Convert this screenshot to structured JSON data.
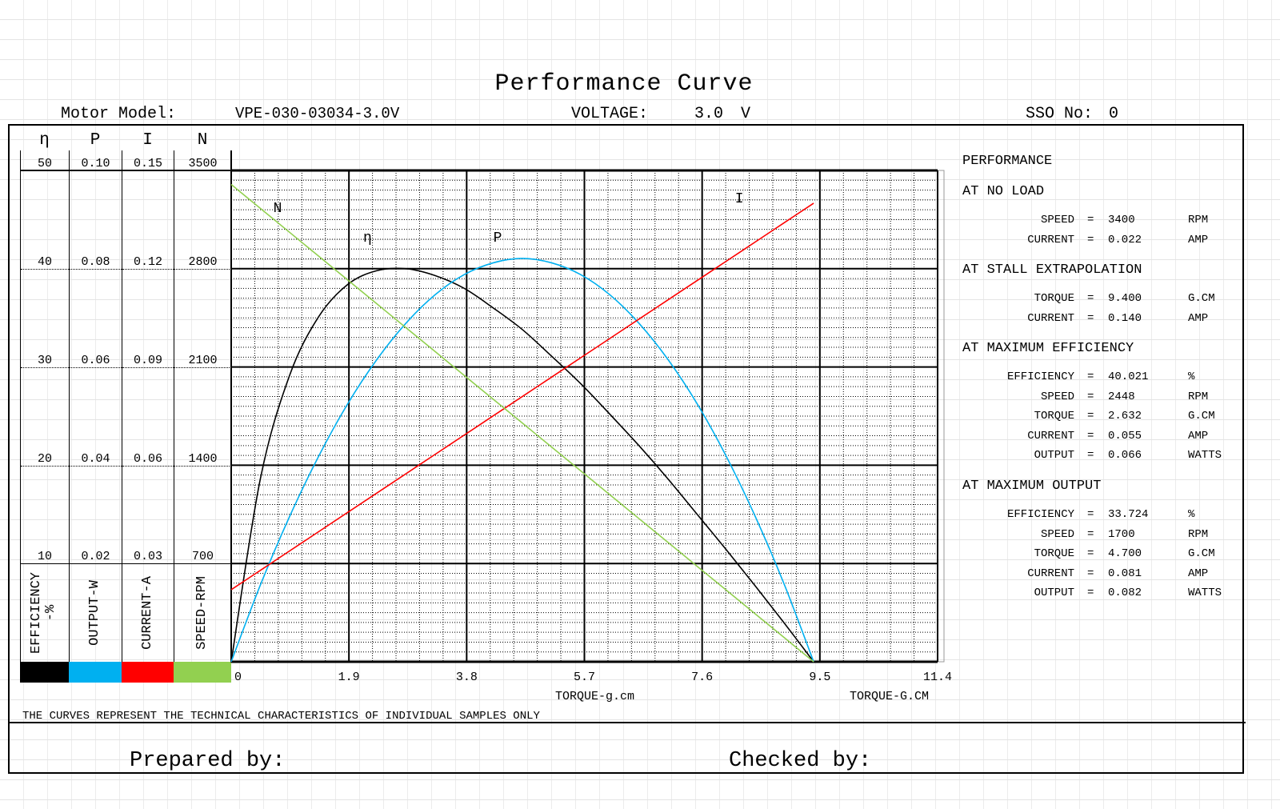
{
  "title": "Performance Curve",
  "header": {
    "motor_model_label": "Motor Model:",
    "motor_model": "VPE-030-03034-3.0V",
    "voltage_label": "VOLTAGE:",
    "voltage": "3.0",
    "voltage_unit": "V",
    "sso_label": "SSO No:",
    "sso": "0"
  },
  "axes": {
    "headers": [
      "η",
      "P",
      "I",
      "N"
    ],
    "ticks": [
      [
        "50",
        "0.10",
        "0.15",
        "3500"
      ],
      [
        "40",
        "0.08",
        "0.12",
        "2800"
      ],
      [
        "30",
        "0.06",
        "0.09",
        "2100"
      ],
      [
        "20",
        "0.04",
        "0.06",
        "1400"
      ],
      [
        "10",
        "0.02",
        "0.03",
        "700"
      ]
    ],
    "names": [
      "EFFICIENCY\n-%",
      "OUTPUT-W",
      "CURRENT-A",
      "SPEED-RPM"
    ],
    "colors": [
      "#000000",
      "#00b0f0",
      "#ff0000",
      "#92d050"
    ]
  },
  "chart_data": {
    "type": "line",
    "title": "Performance Curve",
    "xlabel": "TORQUE-g.cm",
    "xlabel2": "TORQUE-G.CM",
    "x_ticks": [
      "0",
      "1.9",
      "3.8",
      "5.7",
      "7.6",
      "9.5",
      "11.4"
    ],
    "xlim": [
      0,
      11.4
    ],
    "x": [
      0,
      0.47,
      0.94,
      1.41,
      1.88,
      2.35,
      2.82,
      3.29,
      3.76,
      4.23,
      4.7,
      5.17,
      5.64,
      6.11,
      6.58,
      7.05,
      7.52,
      7.99,
      8.46,
      8.93,
      9.4
    ],
    "series": [
      {
        "name": "η",
        "label": "η",
        "axis": "EFFICIENCY-%",
        "ylim": [
          0,
          50
        ],
        "color": "#000000",
        "values": [
          0,
          18.6,
          29.1,
          35.1,
          38.4,
          39.8,
          40.0,
          39.3,
          38.0,
          36.0,
          33.8,
          31.1,
          28.3,
          25.2,
          22.0,
          18.6,
          15.0,
          11.4,
          7.7,
          3.9,
          0
        ]
      },
      {
        "name": "P",
        "label": "P",
        "axis": "OUTPUT-W",
        "ylim": [
          0,
          0.1
        ],
        "color": "#00b0f0",
        "values": [
          0,
          0.0156,
          0.0295,
          0.0418,
          0.0525,
          0.0615,
          0.0689,
          0.0747,
          0.0788,
          0.0812,
          0.0821,
          0.0812,
          0.0788,
          0.0747,
          0.0689,
          0.0615,
          0.0525,
          0.0418,
          0.0295,
          0.0156,
          0
        ]
      },
      {
        "name": "I",
        "label": "I",
        "axis": "CURRENT-A",
        "ylim": [
          0,
          0.15
        ],
        "color": "#ff0000",
        "values": [
          0.022,
          0.0279,
          0.0338,
          0.0397,
          0.0456,
          0.0515,
          0.0574,
          0.0633,
          0.0692,
          0.0751,
          0.081,
          0.0869,
          0.0928,
          0.0987,
          0.1046,
          0.1105,
          0.1164,
          0.1223,
          0.1282,
          0.1341,
          0.14
        ]
      },
      {
        "name": "N",
        "label": "N",
        "axis": "SPEED-RPM",
        "ylim": [
          0,
          3500
        ],
        "color": "#92d050",
        "values": [
          3400,
          3230,
          3060,
          2890,
          2720,
          2550,
          2380,
          2210,
          2040,
          1870,
          1700,
          1530,
          1360,
          1190,
          1020,
          850,
          680,
          510,
          340,
          170,
          0
        ]
      }
    ],
    "grid": true
  },
  "performance": {
    "title": "PERFORMANCE",
    "sections": [
      {
        "title": "AT NO LOAD",
        "rows": [
          [
            "SPEED",
            "=",
            "3400",
            "RPM"
          ],
          [
            "CURRENT",
            "=",
            "0.022",
            "AMP"
          ]
        ]
      },
      {
        "title": "AT STALL EXTRAPOLATION",
        "rows": [
          [
            "TORQUE",
            "=",
            "9.400",
            "G.CM"
          ],
          [
            "CURRENT",
            "=",
            "0.140",
            "AMP"
          ]
        ]
      },
      {
        "title": "AT MAXIMUM EFFICIENCY",
        "rows": [
          [
            "EFFICIENCY",
            "=",
            "40.021",
            "%"
          ],
          [
            "SPEED",
            "=",
            "2448",
            "RPM"
          ],
          [
            "TORQUE",
            "=",
            "2.632",
            "G.CM"
          ],
          [
            "CURRENT",
            "=",
            "0.055",
            "AMP"
          ],
          [
            "OUTPUT",
            "=",
            "0.066",
            "WATTS"
          ]
        ]
      },
      {
        "title": "AT MAXIMUM OUTPUT",
        "rows": [
          [
            "EFFICIENCY",
            "=",
            "33.724",
            "%"
          ],
          [
            "SPEED",
            "=",
            "1700",
            "RPM"
          ],
          [
            "TORQUE",
            "=",
            "4.700",
            "G.CM"
          ],
          [
            "CURRENT",
            "=",
            "0.081",
            "AMP"
          ],
          [
            "OUTPUT",
            "=",
            "0.082",
            "WATTS"
          ]
        ]
      }
    ]
  },
  "footer": {
    "note": "THE CURVES REPRESENT THE TECHNICAL CHARACTERISTICS OF INDIVIDUAL SAMPLES ONLY",
    "prepared": "Prepared by:",
    "checked": "Checked by:"
  }
}
